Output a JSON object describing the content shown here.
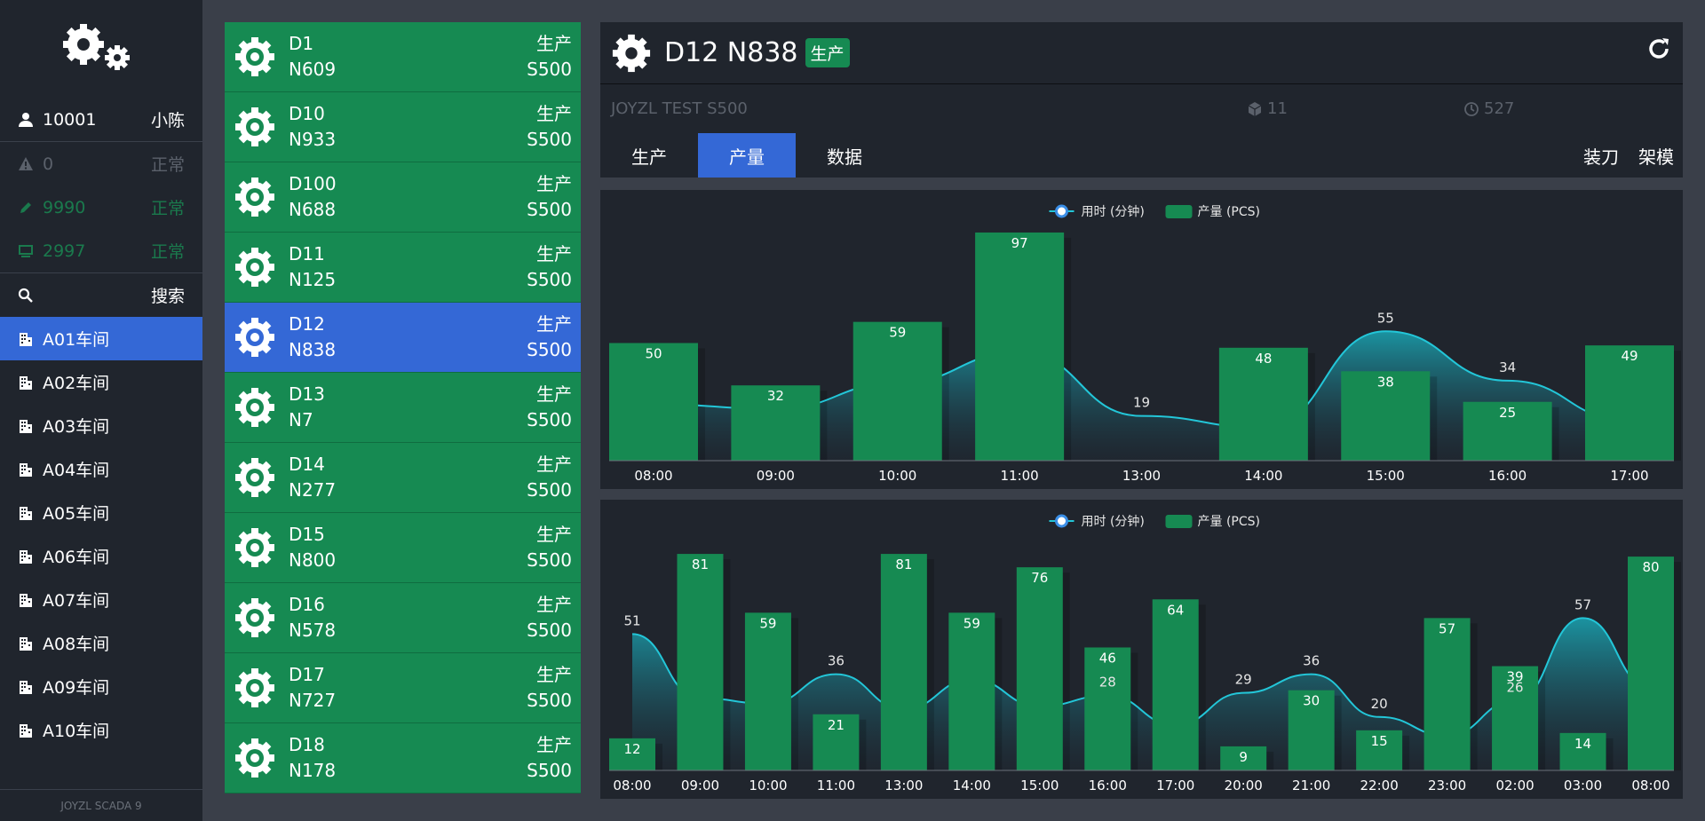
{
  "user": {
    "id": "10001",
    "name": "小陈"
  },
  "status_rows": [
    {
      "icon": "warning-icon",
      "value": "0",
      "state": "正常"
    },
    {
      "icon": "pencil-icon",
      "value": "9990",
      "state": "正常"
    },
    {
      "icon": "monitor-icon",
      "value": "2997",
      "state": "正常"
    }
  ],
  "search_label": "搜索",
  "workshops": [
    "A01车间",
    "A02车间",
    "A03车间",
    "A04车间",
    "A05车间",
    "A06车间",
    "A07车间",
    "A08车间",
    "A09车间",
    "A10车间"
  ],
  "footer": "JOYZL SCADA 9",
  "devices": [
    {
      "id": "D1",
      "model": "N609",
      "state": "生产",
      "series": "S500"
    },
    {
      "id": "D10",
      "model": "N933",
      "state": "生产",
      "series": "S500"
    },
    {
      "id": "D100",
      "model": "N688",
      "state": "生产",
      "series": "S500"
    },
    {
      "id": "D11",
      "model": "N125",
      "state": "生产",
      "series": "S500"
    },
    {
      "id": "D12",
      "model": "N838",
      "state": "生产",
      "series": "S500"
    },
    {
      "id": "D13",
      "model": "N7",
      "state": "生产",
      "series": "S500"
    },
    {
      "id": "D14",
      "model": "N277",
      "state": "生产",
      "series": "S500"
    },
    {
      "id": "D15",
      "model": "N800",
      "state": "生产",
      "series": "S500"
    },
    {
      "id": "D16",
      "model": "N578",
      "state": "生产",
      "series": "S500"
    },
    {
      "id": "D17",
      "model": "N727",
      "state": "生产",
      "series": "S500"
    },
    {
      "id": "D18",
      "model": "N178",
      "state": "生产",
      "series": "S500"
    }
  ],
  "detail": {
    "title": "D12 N838",
    "badge": "生产",
    "subtitle": "JOYZL TEST S500",
    "box_count": "11",
    "time_count": "527",
    "tabs": [
      "生产",
      "产量",
      "数据"
    ],
    "right_tabs": [
      "装刀",
      "架模"
    ]
  },
  "legend": {
    "time": "用时 (分钟)",
    "output": "产量 (PCS)"
  },
  "colors": {
    "green": "#168a52",
    "blue": "#3468d6",
    "cyan": "#23c6d8"
  },
  "chart_data": [
    {
      "type": "bar",
      "categories": [
        "08:00",
        "09:00",
        "10:00",
        "11:00",
        "13:00",
        "14:00",
        "15:00",
        "16:00",
        "17:00"
      ],
      "series": [
        {
          "name": "产量 (PCS)",
          "values": [
            50,
            32,
            59,
            97,
            0,
            48,
            38,
            25,
            49
          ]
        },
        {
          "name": "用时 (分钟)",
          "type": "area",
          "values": [
            24,
            22,
            33,
            46,
            19,
            14,
            55,
            34,
            17
          ]
        }
      ],
      "time_labels": [
        "",
        "",
        "",
        "",
        "19",
        "",
        "55",
        "34",
        ""
      ],
      "ylim": [
        0,
        100
      ]
    },
    {
      "type": "bar",
      "categories": [
        "08:00",
        "09:00",
        "10:00",
        "11:00",
        "13:00",
        "14:00",
        "15:00",
        "16:00",
        "17:00",
        "20:00",
        "21:00",
        "22:00",
        "23:00",
        "02:00",
        "03:00",
        "08:00"
      ],
      "series": [
        {
          "name": "产量 (PCS)",
          "values": [
            12,
            81,
            59,
            21,
            81,
            59,
            76,
            46,
            64,
            9,
            30,
            15,
            57,
            39,
            14,
            80
          ]
        },
        {
          "name": "用时 (分钟)",
          "type": "area",
          "values": [
            51,
            27,
            25,
            36,
            23,
            34,
            24,
            28,
            17,
            29,
            36,
            20,
            13,
            26,
            57,
            31
          ]
        }
      ],
      "time_labels": [
        "51",
        "",
        "",
        "36",
        "",
        "",
        "",
        "28",
        "",
        "29",
        "36",
        "20",
        "",
        "26",
        "57",
        ""
      ],
      "ylim": [
        0,
        88
      ]
    }
  ]
}
